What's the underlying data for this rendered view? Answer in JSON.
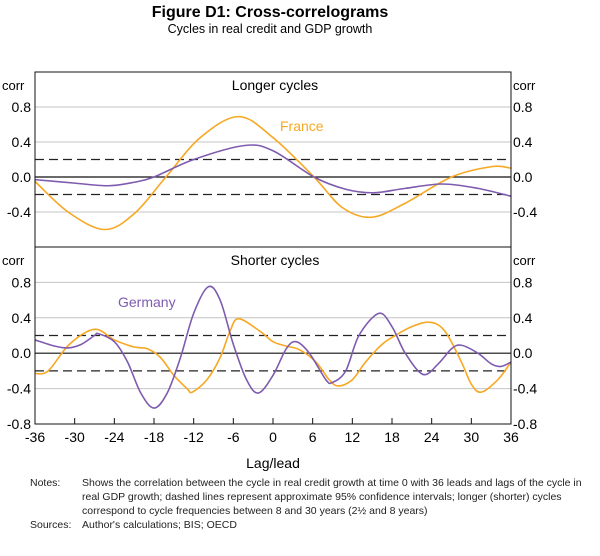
{
  "title": "Figure D1: Cross-correlograms",
  "subtitle": "Cycles in real credit and GDP growth",
  "notes_label": "Notes:",
  "notes": "Shows the correlation between the cycle in real credit growth at time 0 with 36 leads and lags of the cycle in real GDP growth; dashed lines represent approximate 95% confidence intervals; longer (shorter) cycles correspond to cycle frequencies between 8 and 30 years (2½ and 8 years)",
  "sources_label": "Sources:",
  "sources": "Author's calculations; BIS; OECD",
  "chart_data": [
    {
      "type": "line",
      "title": "Longer cycles",
      "ylabel_left": "corr",
      "ylabel_right": "corr",
      "ylim": [
        -0.8,
        1.2
      ],
      "yticks": [
        "0.8",
        "0.4",
        "0.0",
        "-0.4"
      ],
      "ytick_values": [
        0.8,
        0.4,
        0.0,
        -0.4
      ],
      "confidence_band": [
        -0.2,
        0.2
      ],
      "grid": true,
      "series": [
        {
          "name": "France",
          "color": "#F7A823",
          "x": [
            -36,
            -31,
            -25.5,
            -21,
            -16.2,
            -11,
            -5.2,
            0,
            6.2,
            10.5,
            14.9,
            20,
            27,
            33.2,
            36
          ],
          "y": [
            -0.05,
            -0.4,
            -0.6,
            -0.42,
            0.0,
            0.45,
            0.69,
            0.45,
            0.0,
            -0.35,
            -0.46,
            -0.3,
            0.0,
            0.12,
            0.1
          ]
        },
        {
          "name": "",
          "color": "#7E5BAF",
          "x": [
            -36,
            -30,
            -25,
            -21,
            -18,
            -12,
            -4.3,
            0,
            6.2,
            11,
            15.2,
            20,
            25.6,
            31,
            36
          ],
          "y": [
            -0.03,
            -0.07,
            -0.1,
            -0.06,
            0.0,
            0.2,
            0.36,
            0.3,
            0.0,
            -0.14,
            -0.18,
            -0.13,
            -0.08,
            -0.13,
            -0.22
          ]
        }
      ]
    },
    {
      "type": "line",
      "title": "Shorter cycles",
      "ylabel_left": "corr",
      "ylabel_right": "corr",
      "xlabel": "Lag/lead",
      "ylim": [
        -0.8,
        1.2
      ],
      "xlim": [
        -36,
        36
      ],
      "xticks": [
        "-36",
        "-30",
        "-24",
        "-18",
        "-12",
        "-6",
        "0",
        "6",
        "12",
        "18",
        "24",
        "30",
        "36"
      ],
      "xtick_values": [
        -36,
        -30,
        -24,
        -18,
        -12,
        -6,
        0,
        6,
        12,
        18,
        24,
        30,
        36
      ],
      "yticks": [
        "0.8",
        "0.4",
        "0.0",
        "-0.4",
        "-0.8"
      ],
      "ytick_values": [
        0.8,
        0.4,
        0.0,
        -0.4,
        -0.8
      ],
      "confidence_band": [
        -0.2,
        0.2
      ],
      "grid": true,
      "series": [
        {
          "name": "",
          "color": "#F7A823",
          "x": [
            -36,
            -34,
            -30.8,
            -27,
            -24,
            -21,
            -19,
            -17,
            -15,
            -13,
            -12.2,
            -10,
            -8,
            -6.5,
            -5.2,
            -2,
            0,
            2,
            4,
            6.5,
            8.5,
            9.9,
            12,
            14,
            16.5,
            18.5,
            21,
            23.7,
            26,
            28.5,
            30,
            31.5,
            34,
            36
          ],
          "y": [
            -0.23,
            -0.2,
            0.1,
            0.27,
            0.15,
            0.07,
            0.05,
            -0.05,
            -0.25,
            -0.4,
            -0.44,
            -0.3,
            -0.05,
            0.25,
            0.39,
            0.25,
            0.13,
            0.08,
            0.04,
            -0.1,
            -0.3,
            -0.37,
            -0.3,
            -0.1,
            0.1,
            0.2,
            0.3,
            0.35,
            0.25,
            -0.1,
            -0.35,
            -0.44,
            -0.3,
            -0.1
          ]
        },
        {
          "name": "Germany",
          "color": "#7E5BAF",
          "x": [
            -36,
            -33,
            -31,
            -29,
            -27,
            -26.4,
            -24,
            -22,
            -20,
            -18,
            -16,
            -14,
            -12,
            -9.8,
            -8,
            -6,
            -4,
            -2.2,
            0,
            2,
            3.5,
            5.5,
            8,
            9,
            11,
            13,
            16,
            18,
            20,
            22.7,
            25,
            27,
            28.5,
            31,
            33,
            34.5,
            36
          ],
          "y": [
            0.15,
            0.08,
            0.06,
            0.1,
            0.2,
            0.22,
            0.13,
            -0.1,
            -0.45,
            -0.62,
            -0.45,
            -0.05,
            0.45,
            0.75,
            0.6,
            0.1,
            -0.3,
            -0.45,
            -0.25,
            0.05,
            0.13,
            0.0,
            -0.3,
            -0.33,
            -0.2,
            0.2,
            0.45,
            0.3,
            0.0,
            -0.24,
            -0.12,
            0.05,
            0.09,
            0.0,
            -0.12,
            -0.15,
            -0.1
          ]
        }
      ]
    }
  ]
}
